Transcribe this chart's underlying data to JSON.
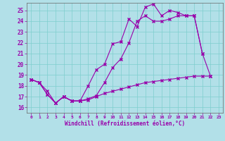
{
  "xlabel": "Windchill (Refroidissement éolien,°C)",
  "bg_color": "#b2e0e8",
  "grid_color": "#7ecece",
  "line_color": "#9900aa",
  "xlim": [
    -0.5,
    23.5
  ],
  "ylim": [
    15.5,
    25.7
  ],
  "xticks": [
    0,
    1,
    2,
    3,
    4,
    5,
    6,
    7,
    8,
    9,
    10,
    11,
    12,
    13,
    14,
    15,
    16,
    17,
    18,
    19,
    20,
    21,
    22,
    23
  ],
  "yticks": [
    16,
    17,
    18,
    19,
    20,
    21,
    22,
    23,
    24,
    25
  ],
  "line1_x": [
    0,
    1,
    2,
    3,
    4,
    5,
    6,
    7,
    8,
    9,
    10,
    11,
    12,
    13,
    14,
    15,
    16,
    17,
    18,
    19,
    20,
    21,
    22
  ],
  "line1_y": [
    18.6,
    18.3,
    17.5,
    16.4,
    17.0,
    16.6,
    16.6,
    18.0,
    19.5,
    20.0,
    21.9,
    22.1,
    24.2,
    23.5,
    25.3,
    25.6,
    24.5,
    25.0,
    24.8,
    24.5,
    24.5,
    21.0,
    18.9
  ],
  "line2_x": [
    0,
    1,
    2,
    3,
    4,
    5,
    6,
    7,
    8,
    9,
    10,
    11,
    12,
    13,
    14,
    15,
    16,
    17,
    18,
    19,
    20,
    21
  ],
  "line2_y": [
    18.6,
    18.3,
    17.2,
    16.4,
    17.0,
    16.6,
    16.6,
    16.8,
    17.1,
    18.3,
    19.7,
    20.5,
    22.0,
    24.0,
    24.5,
    24.0,
    24.0,
    24.2,
    24.5,
    24.5,
    24.5,
    21.0
  ],
  "line3_x": [
    0,
    1,
    2,
    3,
    4,
    5,
    6,
    7,
    8,
    9,
    10,
    11,
    12,
    13,
    14,
    15,
    16,
    17,
    18,
    19,
    20,
    21,
    22
  ],
  "line3_y": [
    18.6,
    18.3,
    17.2,
    16.4,
    17.0,
    16.6,
    16.6,
    16.7,
    17.0,
    17.3,
    17.5,
    17.7,
    17.9,
    18.1,
    18.3,
    18.4,
    18.5,
    18.6,
    18.7,
    18.8,
    18.9,
    18.9,
    18.9
  ]
}
